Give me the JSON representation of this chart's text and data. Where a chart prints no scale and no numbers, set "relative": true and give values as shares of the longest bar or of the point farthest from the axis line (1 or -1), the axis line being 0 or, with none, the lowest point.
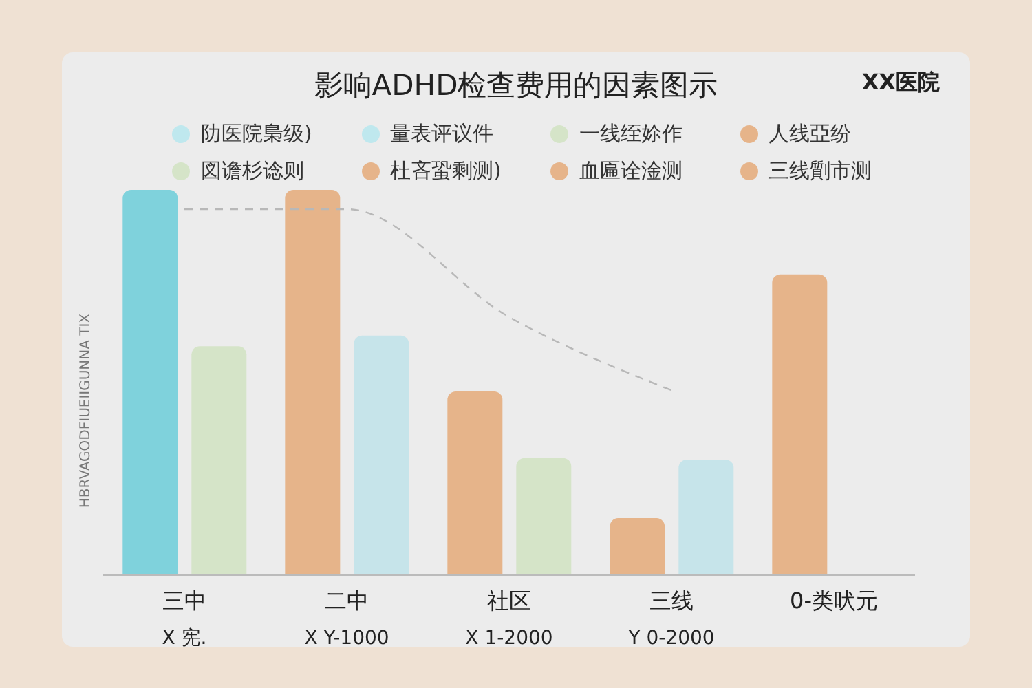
{
  "chart_data": {
    "type": "bar",
    "title": "影响ADHD检查费用的因素图示",
    "ylabel": "HBRVAGODFIUEIIGUNNA TIX",
    "annotations": [
      "XX医院"
    ],
    "relative": true,
    "legend": "top",
    "categories": [
      "三中\nX 宪.",
      "二中\nX Y-1000",
      "社区\nX 1-2000",
      "三线\nY 0-2000",
      "0-类吠元"
    ],
    "series": [
      {
        "color": "#e6b48a",
        "colors": [
          "#7fd2dc",
          "#e6b48a",
          "#e6b48a",
          "#e6b48a",
          "#e6b48a"
        ],
        "values": [
          1,
          1,
          0.477,
          0.148,
          0.781
        ]
      },
      {
        "color": "#c6e4ea",
        "colors": [
          "#d5e4c8",
          "#c6e4ea",
          "#d5e4c8",
          "#c6e4ea",
          "#d5e4c8"
        ],
        "values": [
          0.594,
          0.622,
          0.304,
          0.3,
          null
        ]
      },
      {
        "type": "line",
        "color": "#b8b8b8",
        "line_style": "dashed",
        "values": [
          0.95,
          0.95,
          0.67,
          0.48,
          null
        ]
      },
      {
        "name": "阞医院梟级)",
        "color": "#bfe8ee",
        "values": [
          null,
          null,
          null,
          null,
          null
        ]
      },
      {
        "name": "量表评议件",
        "color": "#bfe8ee",
        "values": [
          null,
          null,
          null,
          null,
          null
        ]
      },
      {
        "name": "一线绖㚷作",
        "color": "#d5e4c8",
        "values": [
          null,
          null,
          null,
          null,
          null
        ]
      },
      {
        "name": "人线亞纷",
        "color": "#e6b48a",
        "values": [
          null,
          null,
          null,
          null,
          null
        ]
      },
      {
        "name": "図谵杉谂则",
        "color": "#d5e4c8",
        "values": [
          null,
          null,
          null,
          null,
          null
        ]
      },
      {
        "name": "杜吝蛩剩测)",
        "color": "#e6b48a",
        "values": [
          null,
          null,
          null,
          null,
          null
        ]
      },
      {
        "name": "血匾诠淦测",
        "color": "#e6b48a",
        "values": [
          null,
          null,
          null,
          null,
          null
        ]
      },
      {
        "name": "三线劕市测",
        "color": "#e6b48a",
        "values": [
          null,
          null,
          null,
          null,
          null
        ]
      }
    ]
  }
}
